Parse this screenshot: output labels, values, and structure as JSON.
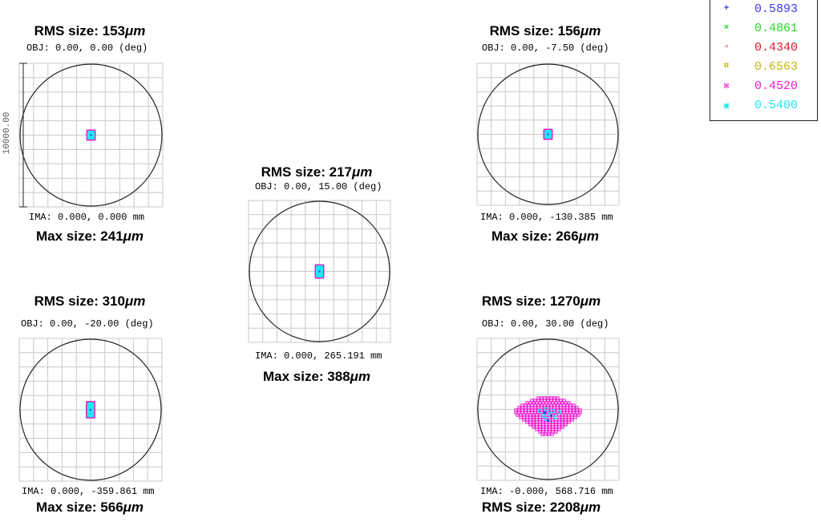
{
  "panels": [
    {
      "id": "p1",
      "rms": "RMS size: 153",
      "rms_unit": "μm",
      "obj": "OBJ: 0.00, 0.00 (deg)",
      "ima": "IMA: 0.000, 0.000 mm",
      "max": "Max size: 241",
      "max_unit": "μm",
      "scale_label": "10000.00"
    },
    {
      "id": "p2",
      "rms": "RMS size: 217",
      "rms_unit": "μm",
      "obj": "OBJ: 0.00, 15.00 (deg)",
      "ima": "IMA: 0.000, 265.191 mm",
      "max": "Max size: 388",
      "max_unit": "μm"
    },
    {
      "id": "p3",
      "rms": "RMS size: 156",
      "rms_unit": "μm",
      "obj": "OBJ: 0.00, -7.50 (deg)",
      "ima": "IMA: 0.000, -130.385 mm",
      "max": "Max size: 266",
      "max_unit": "μm"
    },
    {
      "id": "p4",
      "rms": "RMS size: 310",
      "rms_unit": "μm",
      "obj": "OBJ: 0.00, -20.00 (deg)",
      "ima": "IMA: 0.000, -359.861 mm",
      "max": "Max size: 566",
      "max_unit": "μm"
    },
    {
      "id": "p5",
      "rms": "RMS size: 1270",
      "rms_unit": "μm",
      "obj": "OBJ: 0.00, 30.00 (deg)",
      "ima": "IMA: -0.000, 568.716 mm",
      "max": "RMS size: 2208",
      "max_unit": "μm"
    }
  ],
  "legend": [
    {
      "symbol": "+",
      "value": "0.5893",
      "color": "#3b3bf5"
    },
    {
      "symbol": "×",
      "value": "0.4861",
      "color": "#27d827"
    },
    {
      "symbol": "▫",
      "value": "0.4340",
      "color": "#e8192c"
    },
    {
      "symbol": "⌗",
      "value": "0.6563",
      "color": "#c8b414"
    },
    {
      "symbol": "⌘",
      "value": "0.4520",
      "color": "#f01cd0"
    },
    {
      "symbol": "▣",
      "value": "0.5400",
      "color": "#1ee8ee"
    }
  ],
  "colors": {
    "grid": "#c8c8c8",
    "circle": "#222222",
    "magenta": "#f01cd0",
    "cyan": "#1ee8ee",
    "blue": "#3b3bf5"
  }
}
